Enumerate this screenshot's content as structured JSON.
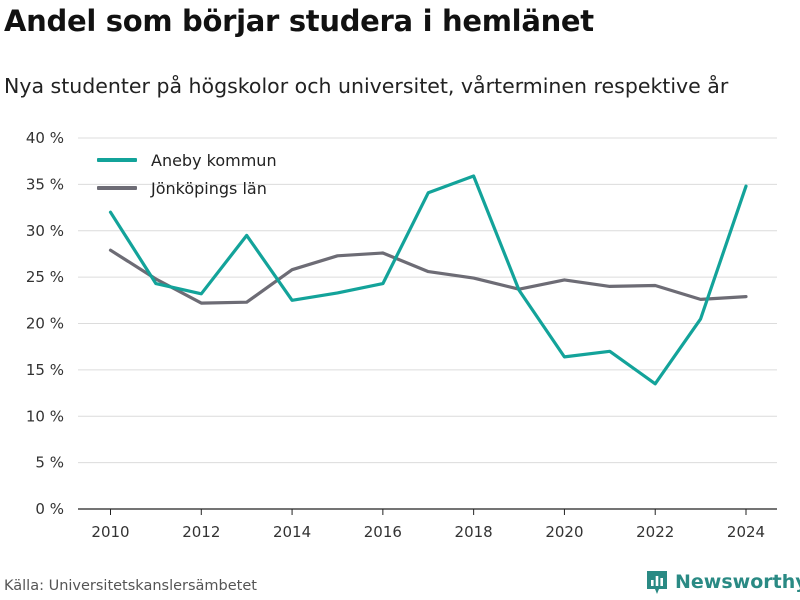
{
  "header": {
    "title": "Andel som börjar studera i hemlänet",
    "subtitle": "Nya studenter på högskolor och universitet, vårterminen respektive år"
  },
  "footer": {
    "source": "Källa: Universitetskanslersämbetet",
    "brand": "Newsworthy",
    "brand_icon": "newsworthy-logo-icon"
  },
  "colors": {
    "aneby": "#13a39a",
    "jonkoping": "#6d6c75",
    "grid": "#dcdcdc",
    "brand": "#2a8a84"
  },
  "chart_data": {
    "type": "line",
    "x": [
      2010,
      2011,
      2012,
      2013,
      2014,
      2015,
      2016,
      2017,
      2018,
      2019,
      2020,
      2021,
      2022,
      2023,
      2024
    ],
    "series": [
      {
        "name": "Aneby kommun",
        "values": [
          32.0,
          24.3,
          23.2,
          29.5,
          22.5,
          23.3,
          24.3,
          34.1,
          35.9,
          23.6,
          16.4,
          17.0,
          13.5,
          20.5,
          34.8
        ]
      },
      {
        "name": "Jönköpings län",
        "values": [
          27.9,
          24.8,
          22.2,
          22.3,
          25.8,
          27.3,
          27.6,
          25.6,
          24.9,
          23.7,
          24.7,
          24.0,
          24.1,
          22.6,
          22.9
        ]
      }
    ],
    "ylim": [
      0,
      40
    ],
    "yticks": [
      "0 %",
      "5 %",
      "10 %",
      "15 %",
      "20 %",
      "25 %",
      "30 %",
      "35 %",
      "40 %"
    ],
    "xticks": [
      "2010",
      "2012",
      "2014",
      "2016",
      "2018",
      "2020",
      "2022",
      "2024"
    ],
    "grid": true,
    "legend": "top-left"
  }
}
